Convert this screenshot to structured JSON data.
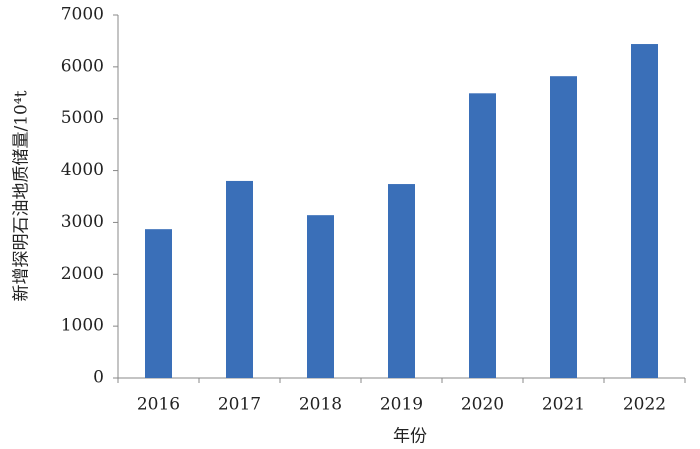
{
  "chart_data": {
    "type": "bar",
    "x_label": "年份",
    "y_label": "新增探明石油地质储量/10⁴t",
    "categories": [
      "2016",
      "2017",
      "2018",
      "2019",
      "2020",
      "2021",
      "2022"
    ],
    "values": [
      2870,
      3800,
      3140,
      3740,
      5490,
      5820,
      6440
    ],
    "color": "#3a6fb8",
    "ylim": [
      0,
      7000
    ],
    "yticks": [
      0,
      1000,
      2000,
      3000,
      4000,
      5000,
      6000,
      7000
    ],
    "grid": false
  }
}
